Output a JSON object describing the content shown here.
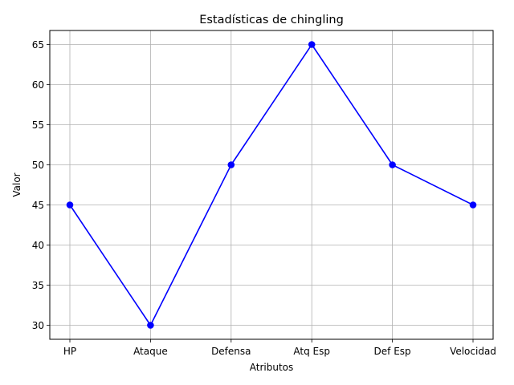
{
  "chart_data": {
    "type": "line",
    "title": "Estadísticas de chingling",
    "xlabel": "Atributos",
    "ylabel": "Valor",
    "categories": [
      "HP",
      "Ataque",
      "Defensa",
      "Atq Esp",
      "Def Esp",
      "Velocidad"
    ],
    "series": [
      {
        "values": [
          45,
          30,
          50,
          65,
          50,
          45
        ],
        "color": "#0000ff",
        "marker": "circle"
      }
    ],
    "ylim": [
      28.25,
      66.75
    ],
    "yticks": [
      30,
      35,
      40,
      45,
      50,
      55,
      60,
      65
    ],
    "grid": true
  }
}
